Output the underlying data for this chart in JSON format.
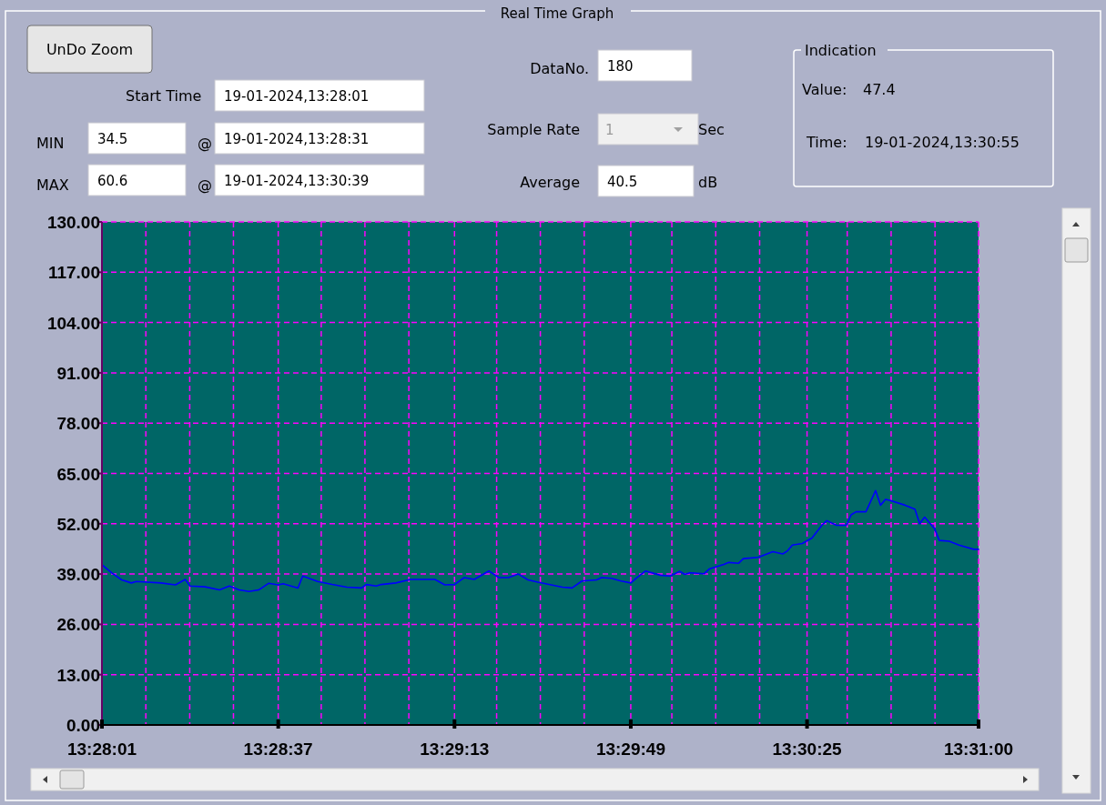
{
  "chart_data": {
    "type": "line",
    "title": "Real Time Graph",
    "x": [
      13.46694,
      13.4675,
      13.46806,
      13.46861,
      13.46889,
      13.47028,
      13.47111,
      13.47167,
      13.47194,
      13.47278,
      13.47361,
      13.47417,
      13.47472,
      13.47528,
      13.47583,
      13.47639,
      13.47694,
      13.47722,
      13.47806,
      13.47833,
      13.47917,
      13.48,
      13.48083,
      13.48167,
      13.48194,
      13.4825,
      13.48278,
      13.48361,
      13.48444,
      13.48583,
      13.48639,
      13.48694,
      13.4875,
      13.48806,
      13.48889,
      13.48944,
      13.49,
      13.49056,
      13.49111,
      13.49167,
      13.49306,
      13.49361,
      13.49417,
      13.495,
      13.49528,
      13.49583,
      13.49639,
      13.49694,
      13.49722,
      13.49778,
      13.49861,
      13.49917,
      13.49972,
      13.5,
      13.50028,
      13.50111,
      13.50139,
      13.50222,
      13.5025,
      13.50306,
      13.50333,
      13.50417,
      13.505,
      13.50556,
      13.50583,
      13.50611,
      13.50667,
      13.50722,
      13.50778,
      13.50806,
      13.50861,
      13.50917,
      13.50944,
      13.50972,
      13.51028,
      13.51083,
      13.51111,
      13.51139,
      13.51167,
      13.5125,
      13.51306,
      13.51333,
      13.51361,
      13.51417,
      13.51444,
      13.515,
      13.51556,
      13.51639,
      13.51667
    ],
    "series": [
      {
        "color": "#0000ff",
        "values": [
          41.4,
          39.3,
          37.5,
          36.7,
          37.1,
          36.7,
          36.2,
          37.6,
          35.9,
          35.7,
          34.9,
          35.9,
          34.9,
          34.5,
          34.9,
          36.6,
          36.2,
          36.5,
          35.4,
          38.5,
          37.1,
          36.3,
          35.6,
          35.4,
          36.3,
          35.9,
          36.3,
          36.7,
          37.6,
          37.6,
          36.2,
          36.3,
          38.1,
          37.6,
          39.8,
          38.1,
          38.1,
          39.0,
          37.5,
          36.9,
          35.6,
          35.4,
          37.2,
          37.5,
          38.1,
          37.9,
          37.2,
          36.7,
          37.8,
          39.8,
          38.7,
          38.5,
          39.7,
          38.9,
          39.3,
          39.1,
          40.3,
          41.5,
          42.0,
          41.8,
          43.0,
          43.3,
          44.8,
          44.2,
          45.0,
          46.5,
          46.9,
          48.3,
          51.6,
          52.8,
          51.6,
          51.6,
          54.3,
          55.1,
          55.1,
          60.6,
          56.8,
          58.3,
          58.0,
          56.8,
          55.8,
          52.0,
          53.7,
          50.8,
          47.7,
          47.5,
          46.5,
          45.4,
          45.4
        ]
      }
    ],
    "xlim": [
      13.46694,
      13.51667
    ],
    "ylim": [
      0,
      130
    ],
    "xticks": [
      {
        "value": 13.46694,
        "label": "13:28:01"
      },
      {
        "value": 13.46943,
        "label": null
      },
      {
        "value": 13.47192,
        "label": null
      },
      {
        "value": 13.4744,
        "label": null
      },
      {
        "value": 13.47694,
        "label": "13:28:37"
      },
      {
        "value": 13.47938,
        "label": null
      },
      {
        "value": 13.48186,
        "label": null
      },
      {
        "value": 13.48435,
        "label": null
      },
      {
        "value": 13.48694,
        "label": "13:29:13"
      },
      {
        "value": 13.48933,
        "label": null
      },
      {
        "value": 13.49181,
        "label": null
      },
      {
        "value": 13.4943,
        "label": null
      },
      {
        "value": 13.49694,
        "label": "13:29:49"
      },
      {
        "value": 13.49927,
        "label": null
      },
      {
        "value": 13.50176,
        "label": null
      },
      {
        "value": 13.50425,
        "label": null
      },
      {
        "value": 13.50694,
        "label": "13:30:25"
      },
      {
        "value": 13.50922,
        "label": null
      },
      {
        "value": 13.51171,
        "label": null
      },
      {
        "value": 13.5142,
        "label": null
      },
      {
        "value": 13.51667,
        "label": "13:31:00"
      }
    ],
    "yticks": [
      {
        "value": 0,
        "label": "0.00"
      },
      {
        "value": 13,
        "label": "13.00"
      },
      {
        "value": 26,
        "label": "26.00"
      },
      {
        "value": 39,
        "label": "39.00"
      },
      {
        "value": 52,
        "label": "52.00"
      },
      {
        "value": 65,
        "label": "65.00"
      },
      {
        "value": 78,
        "label": "78.00"
      },
      {
        "value": 91,
        "label": "91.00"
      },
      {
        "value": 104,
        "label": "104.00"
      },
      {
        "value": 117,
        "label": "117.00"
      },
      {
        "value": 130,
        "label": "130.00"
      }
    ],
    "grid": true,
    "annotations": [
      "UnDo Zoom",
      "Start Time",
      "19-01-2024,13:28:01",
      "MIN",
      "34.5",
      "@",
      "19-01-2024,13:28:31",
      "MAX",
      "60.6",
      "@",
      "19-01-2024,13:30:39",
      "DataNo.",
      "180",
      "Sample Rate",
      "1",
      "Sec",
      "Average",
      "40.5",
      "dB",
      "Indication",
      "Value:",
      "47.4",
      "Time:",
      "19-01-2024,13:30:55"
    ]
  }
}
